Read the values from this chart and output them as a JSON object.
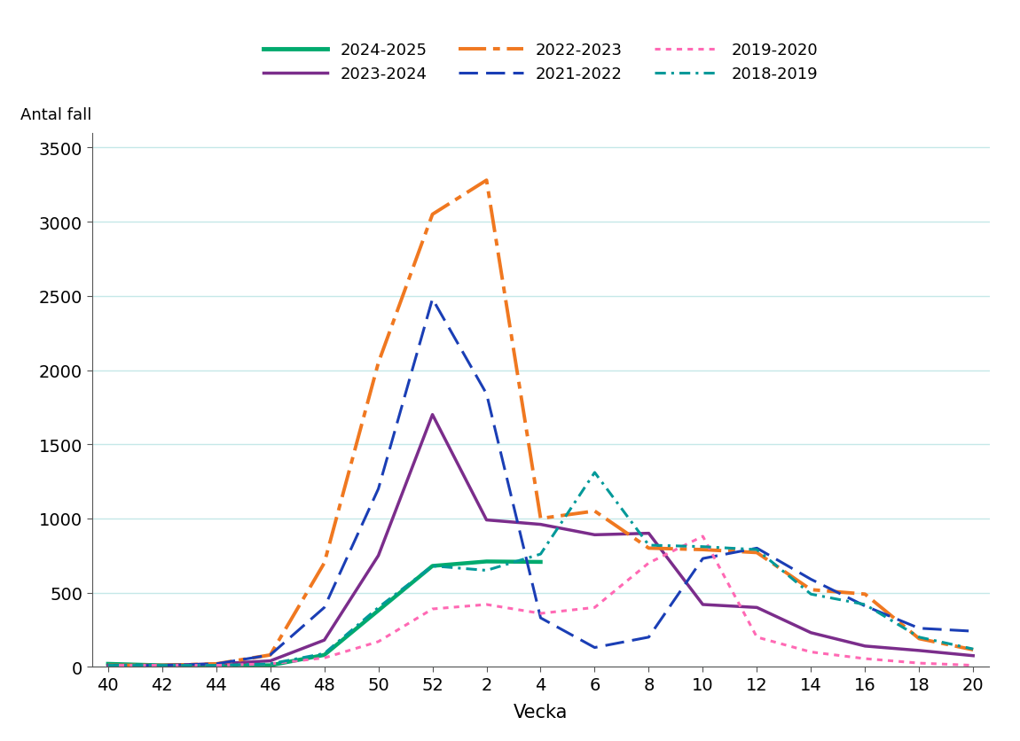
{
  "title": "",
  "xlabel": "Vecka",
  "ylabel": "Antal fall",
  "ylim": [
    0,
    3600
  ],
  "yticks": [
    0,
    500,
    1000,
    1500,
    2000,
    2500,
    3000,
    3500
  ],
  "x_labels": [
    "40",
    "42",
    "44",
    "46",
    "48",
    "50",
    "52",
    "2",
    "4",
    "6",
    "8",
    "10",
    "12",
    "14",
    "16",
    "18",
    "20"
  ],
  "x_positions": [
    0,
    1,
    2,
    3,
    4,
    5,
    6,
    7,
    8,
    9,
    10,
    11,
    12,
    13,
    14,
    15,
    16
  ],
  "background_color": "#ffffff",
  "grid_color": "#c5e8e8",
  "series": [
    {
      "label": "2024-2025",
      "color": "#00aa6e",
      "linestyle": "solid",
      "linewidth": 3.2,
      "values": [
        20,
        10,
        10,
        10,
        80,
        380,
        680,
        710,
        707,
        null,
        null,
        null,
        null,
        null,
        null,
        null,
        null
      ]
    },
    {
      "label": "2023-2024",
      "color": "#7b2d8b",
      "linestyle": "solid",
      "linewidth": 2.5,
      "values": [
        10,
        10,
        20,
        40,
        180,
        750,
        1700,
        990,
        960,
        890,
        900,
        420,
        400,
        230,
        140,
        110,
        75
      ]
    },
    {
      "label": "2022-2023",
      "color": "#f07820",
      "linestyle": "dashdot",
      "linewidth": 2.8,
      "values": [
        10,
        10,
        20,
        80,
        700,
        2050,
        3050,
        3280,
        1000,
        1050,
        800,
        790,
        770,
        520,
        490,
        190,
        115
      ]
    },
    {
      "label": "2021-2022",
      "color": "#1a3eb5",
      "linestyle": "dashed",
      "linewidth": 2.2,
      "values": [
        10,
        10,
        20,
        80,
        400,
        1200,
        2480,
        1840,
        330,
        130,
        200,
        730,
        800,
        590,
        410,
        260,
        240
      ]
    },
    {
      "label": "2019-2020",
      "color": "#ff69b4",
      "linestyle": "dotted",
      "linewidth": 2.2,
      "values": [
        10,
        10,
        10,
        20,
        60,
        170,
        390,
        420,
        360,
        400,
        700,
        880,
        200,
        100,
        55,
        25,
        10
      ]
    },
    {
      "label": "2018-2019",
      "color": "#009999",
      "linestyle": "dashdot",
      "linewidth": 2.2,
      "values": [
        10,
        10,
        10,
        20,
        90,
        400,
        680,
        650,
        760,
        1310,
        820,
        810,
        790,
        490,
        420,
        200,
        120
      ]
    }
  ]
}
